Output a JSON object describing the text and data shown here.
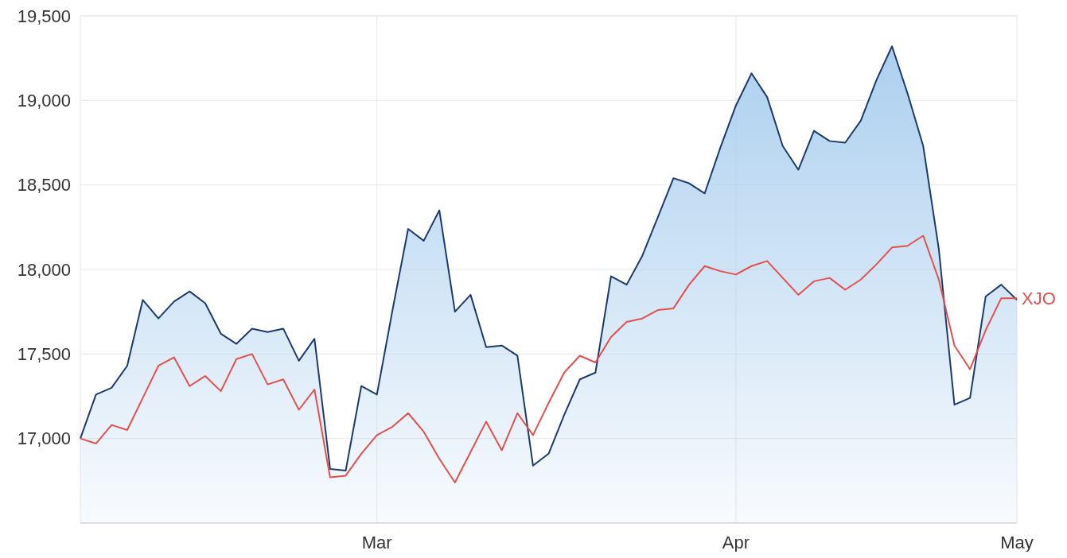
{
  "chart_data": {
    "type": "line",
    "categories": [
      null,
      null,
      null,
      null,
      null,
      null,
      null,
      null,
      null,
      null,
      null,
      null,
      null,
      null,
      null,
      null,
      null,
      null,
      null,
      "Mar",
      null,
      null,
      null,
      null,
      null,
      null,
      null,
      null,
      null,
      null,
      null,
      null,
      null,
      null,
      null,
      null,
      null,
      null,
      null,
      null,
      null,
      null,
      "Apr",
      null,
      null,
      null,
      null,
      null,
      null,
      null,
      null,
      null,
      null,
      null,
      null,
      null,
      null,
      null,
      null,
      null,
      "May"
    ],
    "series": [
      {
        "type": "area",
        "color": "#1d3a6e",
        "values": [
          17000,
          17260,
          17300,
          17430,
          17820,
          17710,
          17810,
          17870,
          17800,
          17620,
          17560,
          17650,
          17630,
          17650,
          17460,
          17590,
          16820,
          16810,
          17310,
          17260,
          17760,
          18240,
          18170,
          18350,
          17750,
          17850,
          17540,
          17550,
          17490,
          16840,
          16910,
          17140,
          17350,
          17390,
          17960,
          17910,
          18080,
          18310,
          18540,
          18510,
          18450,
          18720,
          18970,
          19160,
          19020,
          18730,
          18590,
          18820,
          18760,
          18750,
          18880,
          19120,
          19320,
          19040,
          18730,
          18120,
          17200,
          17240,
          17840,
          17910,
          17820
        ]
      },
      {
        "name": "XJO",
        "color": "#e2504c",
        "values": [
          17000,
          16970,
          17080,
          17050,
          17240,
          17430,
          17480,
          17310,
          17370,
          17280,
          17470,
          17500,
          17320,
          17350,
          17170,
          17290,
          16770,
          16780,
          16910,
          17020,
          17070,
          17150,
          17040,
          16880,
          16740,
          16920,
          17100,
          16930,
          17150,
          17020,
          17210,
          17390,
          17490,
          17450,
          17600,
          17690,
          17710,
          17760,
          17770,
          17910,
          18020,
          17990,
          17970,
          18020,
          18050,
          17950,
          17850,
          17930,
          17950,
          17880,
          17940,
          18030,
          18130,
          18140,
          18200,
          17940,
          17550,
          17410,
          17640,
          17830,
          17830
        ]
      }
    ],
    "ylim": [
      16500,
      19500
    ],
    "yticks": [
      {
        "value": 17000,
        "label": "17,000"
      },
      {
        "value": 17500,
        "label": "17,500"
      },
      {
        "value": 18000,
        "label": "18,000"
      },
      {
        "value": 18500,
        "label": "18,500"
      },
      {
        "value": 19000,
        "label": "19,000"
      },
      {
        "value": 19500,
        "label": "19,500"
      }
    ],
    "grid": true
  }
}
